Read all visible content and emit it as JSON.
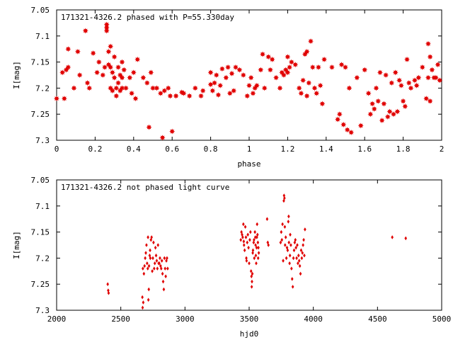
{
  "chart_data": [
    {
      "type": "scatter",
      "title": "171321-4326.2 phased with P=55.330day",
      "xlabel": "phase",
      "ylabel": "I[mag]",
      "xlim": [
        0,
        2
      ],
      "ylim": [
        7.05,
        7.3
      ],
      "y_inverted": true,
      "x_ticks": [
        "0",
        "0.2",
        "0.4",
        "0.6",
        "0.8",
        "1",
        "1.2",
        "1.4",
        "1.6",
        "1.8",
        "2"
      ],
      "y_ticks": [
        "7.05",
        "7.1",
        "7.15",
        "7.2",
        "7.25",
        "7.3"
      ],
      "marker": "filled star",
      "color": "#e00000",
      "grid": false,
      "points": [
        [
          0.0,
          7.22
        ],
        [
          0.04,
          7.22
        ],
        [
          0.03,
          7.17
        ],
        [
          0.05,
          7.165
        ],
        [
          0.06,
          7.16
        ],
        [
          0.06,
          7.125
        ],
        [
          0.09,
          7.2
        ],
        [
          0.11,
          7.13
        ],
        [
          0.12,
          7.175
        ],
        [
          0.15,
          7.09
        ],
        [
          0.16,
          7.19
        ],
        [
          0.17,
          7.2
        ],
        [
          0.19,
          7.133
        ],
        [
          0.21,
          7.17
        ],
        [
          0.22,
          7.15
        ],
        [
          0.24,
          7.175
        ],
        [
          0.25,
          7.16
        ],
        [
          0.26,
          7.09
        ],
        [
          0.26,
          7.084
        ],
        [
          0.26,
          7.078
        ],
        [
          0.27,
          7.13
        ],
        [
          0.27,
          7.155
        ],
        [
          0.28,
          7.12
        ],
        [
          0.28,
          7.16
        ],
        [
          0.28,
          7.2
        ],
        [
          0.29,
          7.205
        ],
        [
          0.29,
          7.17
        ],
        [
          0.3,
          7.14
        ],
        [
          0.3,
          7.18
        ],
        [
          0.31,
          7.2
        ],
        [
          0.31,
          7.215
        ],
        [
          0.32,
          7.16
        ],
        [
          0.32,
          7.19
        ],
        [
          0.33,
          7.175
        ],
        [
          0.33,
          7.205
        ],
        [
          0.34,
          7.18
        ],
        [
          0.34,
          7.2
        ],
        [
          0.34,
          7.15
        ],
        [
          0.35,
          7.165
        ],
        [
          0.36,
          7.2
        ],
        [
          0.38,
          7.18
        ],
        [
          0.39,
          7.21
        ],
        [
          0.4,
          7.17
        ],
        [
          0.41,
          7.22
        ],
        [
          0.42,
          7.145
        ],
        [
          0.45,
          7.18
        ],
        [
          0.47,
          7.19
        ],
        [
          0.48,
          7.275
        ],
        [
          0.49,
          7.17
        ],
        [
          0.5,
          7.2
        ],
        [
          0.52,
          7.2
        ],
        [
          0.54,
          7.21
        ],
        [
          0.55,
          7.295
        ],
        [
          0.56,
          7.205
        ],
        [
          0.58,
          7.2
        ],
        [
          0.59,
          7.215
        ],
        [
          0.6,
          7.283
        ],
        [
          0.62,
          7.215
        ],
        [
          0.65,
          7.208
        ],
        [
          0.66,
          7.21
        ],
        [
          0.69,
          7.215
        ],
        [
          0.72,
          7.2
        ],
        [
          0.75,
          7.215
        ],
        [
          0.76,
          7.205
        ],
        [
          0.8,
          7.17
        ],
        [
          0.8,
          7.193
        ],
        [
          0.81,
          7.205
        ],
        [
          0.82,
          7.19
        ],
        [
          0.83,
          7.175
        ],
        [
          0.84,
          7.213
        ],
        [
          0.85,
          7.195
        ],
        [
          0.86,
          7.163
        ],
        [
          0.88,
          7.18
        ],
        [
          0.89,
          7.16
        ],
        [
          0.9,
          7.21
        ],
        [
          0.91,
          7.172
        ],
        [
          0.92,
          7.205
        ],
        [
          0.93,
          7.16
        ],
        [
          0.95,
          7.165
        ],
        [
          0.97,
          7.175
        ],
        [
          0.99,
          7.215
        ],
        [
          1.0,
          7.195
        ],
        [
          1.01,
          7.18
        ],
        [
          1.02,
          7.21
        ],
        [
          1.03,
          7.2
        ],
        [
          1.04,
          7.195
        ],
        [
          1.06,
          7.165
        ],
        [
          1.07,
          7.135
        ],
        [
          1.08,
          7.2
        ],
        [
          1.1,
          7.14
        ],
        [
          1.11,
          7.165
        ],
        [
          1.12,
          7.145
        ],
        [
          1.14,
          7.18
        ],
        [
          1.16,
          7.2
        ],
        [
          1.17,
          7.17
        ],
        [
          1.18,
          7.175
        ],
        [
          1.19,
          7.165
        ],
        [
          1.2,
          7.17
        ],
        [
          1.2,
          7.14
        ],
        [
          1.21,
          7.16
        ],
        [
          1.22,
          7.15
        ],
        [
          1.24,
          7.155
        ],
        [
          1.26,
          7.2
        ],
        [
          1.27,
          7.21
        ],
        [
          1.28,
          7.185
        ],
        [
          1.29,
          7.135
        ],
        [
          1.3,
          7.13
        ],
        [
          1.3,
          7.215
        ],
        [
          1.31,
          7.19
        ],
        [
          1.32,
          7.11
        ],
        [
          1.33,
          7.16
        ],
        [
          1.34,
          7.2
        ],
        [
          1.35,
          7.21
        ],
        [
          1.36,
          7.16
        ],
        [
          1.37,
          7.195
        ],
        [
          1.38,
          7.23
        ],
        [
          1.39,
          7.145
        ],
        [
          1.43,
          7.16
        ],
        [
          1.46,
          7.26
        ],
        [
          1.47,
          7.25
        ],
        [
          1.48,
          7.155
        ],
        [
          1.49,
          7.27
        ],
        [
          1.5,
          7.16
        ],
        [
          1.51,
          7.28
        ],
        [
          1.52,
          7.2
        ],
        [
          1.53,
          7.285
        ],
        [
          1.56,
          7.18
        ],
        [
          1.58,
          7.272
        ],
        [
          1.6,
          7.165
        ],
        [
          1.62,
          7.21
        ],
        [
          1.63,
          7.25
        ],
        [
          1.64,
          7.23
        ],
        [
          1.65,
          7.24
        ],
        [
          1.66,
          7.2
        ],
        [
          1.67,
          7.225
        ],
        [
          1.68,
          7.17
        ],
        [
          1.69,
          7.262
        ],
        [
          1.7,
          7.23
        ],
        [
          1.71,
          7.175
        ],
        [
          1.72,
          7.255
        ],
        [
          1.73,
          7.245
        ],
        [
          1.74,
          7.19
        ],
        [
          1.75,
          7.25
        ],
        [
          1.76,
          7.17
        ],
        [
          1.77,
          7.245
        ],
        [
          1.78,
          7.185
        ],
        [
          1.79,
          7.195
        ],
        [
          1.8,
          7.225
        ],
        [
          1.81,
          7.235
        ],
        [
          1.82,
          7.145
        ],
        [
          1.83,
          7.19
        ],
        [
          1.84,
          7.2
        ],
        [
          1.86,
          7.185
        ],
        [
          1.87,
          7.195
        ],
        [
          1.88,
          7.18
        ],
        [
          1.9,
          7.16
        ],
        [
          1.92,
          7.22
        ],
        [
          1.93,
          7.18
        ],
        [
          1.93,
          7.115
        ],
        [
          1.94,
          7.225
        ],
        [
          1.94,
          7.14
        ],
        [
          1.95,
          7.165
        ],
        [
          1.96,
          7.18
        ],
        [
          1.97,
          7.18
        ],
        [
          1.98,
          7.155
        ],
        [
          1.99,
          7.185
        ]
      ]
    },
    {
      "type": "scatter",
      "title": "171321-4326.2 not phased light curve",
      "xlabel": "hjd0",
      "ylabel": "I[mag]",
      "xlim": [
        2000,
        5000
      ],
      "ylim": [
        7.05,
        7.3
      ],
      "y_inverted": true,
      "x_ticks": [
        "2000",
        "2500",
        "3000",
        "3500",
        "4000",
        "4500",
        "5000"
      ],
      "y_ticks": [
        "7.05",
        "7.1",
        "7.15",
        "7.2",
        "7.25",
        "7.3"
      ],
      "marker": "small diamond",
      "color": "#e00000",
      "grid": false,
      "points": [
        [
          2398,
          7.25
        ],
        [
          2402,
          7.262
        ],
        [
          2405,
          7.267
        ],
        [
          2668,
          7.275
        ],
        [
          2670,
          7.295
        ],
        [
          2672,
          7.22
        ],
        [
          2675,
          7.285
        ],
        [
          2680,
          7.23
        ],
        [
          2685,
          7.215
        ],
        [
          2690,
          7.2
        ],
        [
          2695,
          7.19
        ],
        [
          2700,
          7.175
        ],
        [
          2705,
          7.21
        ],
        [
          2710,
          7.22
        ],
        [
          2712,
          7.16
        ],
        [
          2715,
          7.28
        ],
        [
          2718,
          7.26
        ],
        [
          2720,
          7.215
        ],
        [
          2725,
          7.195
        ],
        [
          2728,
          7.185
        ],
        [
          2730,
          7.2
        ],
        [
          2735,
          7.165
        ],
        [
          2740,
          7.16
        ],
        [
          2745,
          7.225
        ],
        [
          2750,
          7.2
        ],
        [
          2755,
          7.17
        ],
        [
          2760,
          7.22
        ],
        [
          2765,
          7.21
        ],
        [
          2770,
          7.18
        ],
        [
          2775,
          7.195
        ],
        [
          2780,
          7.205
        ],
        [
          2785,
          7.22
        ],
        [
          2790,
          7.175
        ],
        [
          2795,
          7.21
        ],
        [
          2800,
          7.21
        ],
        [
          2805,
          7.2
        ],
        [
          2810,
          7.215
        ],
        [
          2815,
          7.22
        ],
        [
          2820,
          7.205
        ],
        [
          2825,
          7.23
        ],
        [
          2830,
          7.245
        ],
        [
          2835,
          7.26
        ],
        [
          2840,
          7.2
        ],
        [
          2845,
          7.22
        ],
        [
          2850,
          7.235
        ],
        [
          2855,
          7.205
        ],
        [
          2860,
          7.2
        ],
        [
          2865,
          7.22
        ],
        [
          3435,
          7.165
        ],
        [
          3440,
          7.15
        ],
        [
          3445,
          7.155
        ],
        [
          3450,
          7.16
        ],
        [
          3455,
          7.135
        ],
        [
          3458,
          7.168
        ],
        [
          3460,
          7.175
        ],
        [
          3465,
          7.185
        ],
        [
          3470,
          7.14
        ],
        [
          3475,
          7.16
        ],
        [
          3478,
          7.2
        ],
        [
          3480,
          7.205
        ],
        [
          3485,
          7.17
        ],
        [
          3490,
          7.155
        ],
        [
          3495,
          7.18
        ],
        [
          3500,
          7.21
        ],
        [
          3505,
          7.165
        ],
        [
          3510,
          7.15
        ],
        [
          3515,
          7.225
        ],
        [
          3518,
          7.235
        ],
        [
          3520,
          7.255
        ],
        [
          3522,
          7.245
        ],
        [
          3525,
          7.23
        ],
        [
          3528,
          7.19
        ],
        [
          3530,
          7.185
        ],
        [
          3535,
          7.17
        ],
        [
          3538,
          7.165
        ],
        [
          3540,
          7.2
        ],
        [
          3545,
          7.15
        ],
        [
          3548,
          7.16
        ],
        [
          3550,
          7.175
        ],
        [
          3552,
          7.195
        ],
        [
          3555,
          7.21
        ],
        [
          3558,
          7.18
        ],
        [
          3560,
          7.16
        ],
        [
          3562,
          7.135
        ],
        [
          3565,
          7.155
        ],
        [
          3568,
          7.17
        ],
        [
          3570,
          7.2
        ],
        [
          3572,
          7.18
        ],
        [
          3575,
          7.19
        ],
        [
          3640,
          7.125
        ],
        [
          3645,
          7.17
        ],
        [
          3650,
          7.175
        ],
        [
          3745,
          7.17
        ],
        [
          3750,
          7.15
        ],
        [
          3755,
          7.165
        ],
        [
          3760,
          7.135
        ],
        [
          3765,
          7.205
        ],
        [
          3770,
          7.09
        ],
        [
          3772,
          7.08
        ],
        [
          3775,
          7.085
        ],
        [
          3778,
          7.14
        ],
        [
          3780,
          7.175
        ],
        [
          3785,
          7.16
        ],
        [
          3790,
          7.2
        ],
        [
          3795,
          7.18
        ],
        [
          3800,
          7.185
        ],
        [
          3805,
          7.13
        ],
        [
          3808,
          7.12
        ],
        [
          3810,
          7.17
        ],
        [
          3815,
          7.21
        ],
        [
          3818,
          7.195
        ],
        [
          3820,
          7.155
        ],
        [
          3825,
          7.175
        ],
        [
          3830,
          7.22
        ],
        [
          3835,
          7.24
        ],
        [
          3840,
          7.255
        ],
        [
          3845,
          7.2
        ],
        [
          3850,
          7.185
        ],
        [
          3855,
          7.17
        ],
        [
          3860,
          7.165
        ],
        [
          3865,
          7.18
        ],
        [
          3870,
          7.2
        ],
        [
          3875,
          7.175
        ],
        [
          3880,
          7.21
        ],
        [
          3885,
          7.195
        ],
        [
          3890,
          7.205
        ],
        [
          3895,
          7.215
        ],
        [
          3900,
          7.23
        ],
        [
          3905,
          7.185
        ],
        [
          3910,
          7.2
        ],
        [
          3915,
          7.19
        ],
        [
          3920,
          7.175
        ],
        [
          3925,
          7.165
        ],
        [
          3930,
          7.195
        ],
        [
          3935,
          7.145
        ],
        [
          4615,
          7.16
        ],
        [
          4720,
          7.162
        ]
      ]
    }
  ]
}
